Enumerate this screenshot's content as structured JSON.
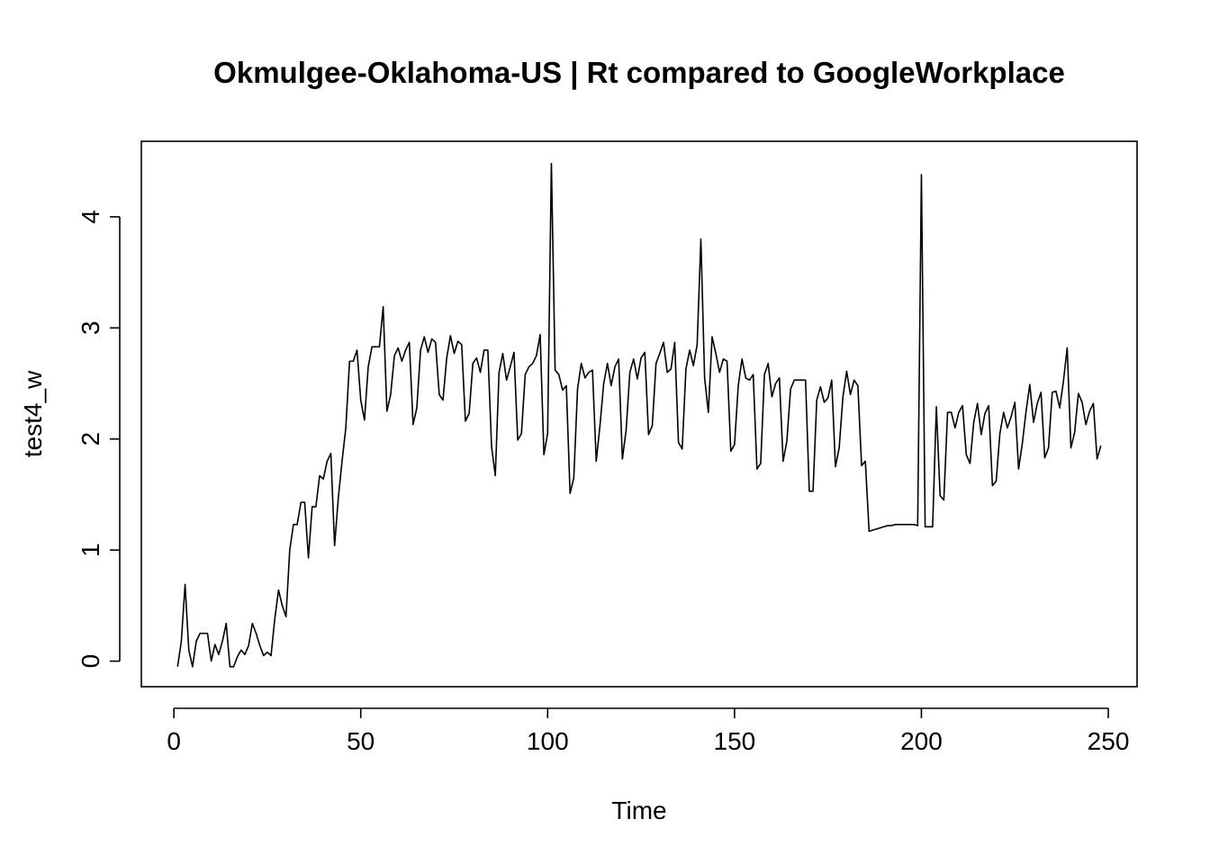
{
  "chart_data": {
    "type": "line",
    "title": "Okmulgee-Oklahoma-US | Rt compared to GoogleWorkplace",
    "xlabel": "Time",
    "ylabel": "test4_w",
    "xlim": [
      -8.7,
      257.7
    ],
    "ylim": [
      -0.23,
      4.68
    ],
    "xticks": [
      0,
      50,
      100,
      150,
      200,
      250
    ],
    "yticks": [
      0,
      1,
      2,
      3,
      4
    ],
    "xtick_labels": [
      "0",
      "50",
      "100",
      "150",
      "200",
      "250"
    ],
    "ytick_labels": [
      "0",
      "1",
      "2",
      "3",
      "4"
    ],
    "grid": false,
    "line_color": "#000000",
    "series": [
      {
        "x_start": 1,
        "values": [
          -0.05,
          0.18,
          0.69,
          0.1,
          -0.05,
          0.18,
          0.25,
          0.25,
          0.25,
          0.0,
          0.15,
          0.06,
          0.18,
          0.34,
          -0.05,
          -0.05,
          0.04,
          0.1,
          0.06,
          0.14,
          0.34,
          0.25,
          0.14,
          0.05,
          0.08,
          0.05,
          0.38,
          0.64,
          0.5,
          0.4,
          1.0,
          1.23,
          1.23,
          1.43,
          1.43,
          0.93,
          1.39,
          1.39,
          1.67,
          1.64,
          1.8,
          1.87,
          1.04,
          1.47,
          1.8,
          2.1,
          2.7,
          2.7,
          2.8,
          2.35,
          2.17,
          2.65,
          2.83,
          2.83,
          2.83,
          3.19,
          2.25,
          2.4,
          2.75,
          2.82,
          2.7,
          2.8,
          2.87,
          2.13,
          2.28,
          2.8,
          2.92,
          2.78,
          2.9,
          2.87,
          2.4,
          2.35,
          2.73,
          2.93,
          2.77,
          2.88,
          2.85,
          2.16,
          2.23,
          2.68,
          2.73,
          2.6,
          2.8,
          2.8,
          1.93,
          1.67,
          2.6,
          2.77,
          2.53,
          2.65,
          2.78,
          1.99,
          2.05,
          2.58,
          2.65,
          2.68,
          2.75,
          2.94,
          1.86,
          2.05,
          4.48,
          2.62,
          2.58,
          2.44,
          2.48,
          1.51,
          1.65,
          2.45,
          2.68,
          2.55,
          2.6,
          2.62,
          1.8,
          2.12,
          2.5,
          2.68,
          2.48,
          2.65,
          2.72,
          1.82,
          2.08,
          2.6,
          2.72,
          2.54,
          2.73,
          2.78,
          2.04,
          2.12,
          2.68,
          2.77,
          2.87,
          2.6,
          2.63,
          2.87,
          1.97,
          1.91,
          2.63,
          2.8,
          2.66,
          2.85,
          3.8,
          2.55,
          2.24,
          2.92,
          2.77,
          2.6,
          2.72,
          2.7,
          1.89,
          1.95,
          2.48,
          2.72,
          2.55,
          2.53,
          2.58,
          1.73,
          1.78,
          2.58,
          2.68,
          2.38,
          2.5,
          2.55,
          1.8,
          1.98,
          2.45,
          2.53,
          2.53,
          2.53,
          2.53,
          1.53,
          1.53,
          2.35,
          2.47,
          2.33,
          2.37,
          2.53,
          1.75,
          1.92,
          2.38,
          2.61,
          2.4,
          2.53,
          2.48,
          1.76,
          1.8,
          1.17,
          1.18,
          1.19,
          1.2,
          1.21,
          1.22,
          1.22,
          1.23,
          1.23,
          1.23,
          1.23,
          1.23,
          1.23,
          1.22,
          4.38,
          1.21,
          1.21,
          1.21,
          2.29,
          1.49,
          1.45,
          2.24,
          2.24,
          2.1,
          2.24,
          2.3,
          1.86,
          1.78,
          2.15,
          2.32,
          2.04,
          2.23,
          2.3,
          1.58,
          1.62,
          2.05,
          2.24,
          2.1,
          2.2,
          2.33,
          1.73,
          1.96,
          2.25,
          2.49,
          2.15,
          2.32,
          2.42,
          1.83,
          1.92,
          2.42,
          2.43,
          2.28,
          2.52,
          2.82,
          1.92,
          2.06,
          2.41,
          2.33,
          2.13,
          2.25,
          2.32,
          1.82,
          1.94
        ]
      }
    ]
  }
}
